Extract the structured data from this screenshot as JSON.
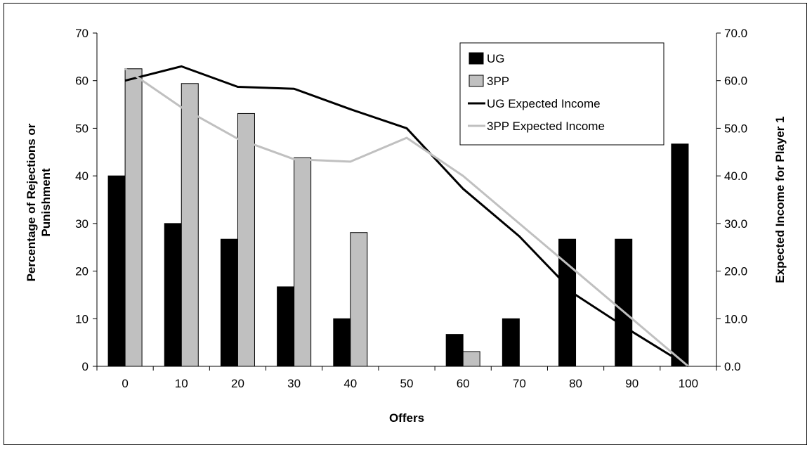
{
  "chart_data": {
    "type": "bar",
    "categories": [
      "0",
      "10",
      "20",
      "30",
      "40",
      "50",
      "60",
      "70",
      "80",
      "90",
      "100"
    ],
    "xlabel": "Offers",
    "ylabel": "Percentage of Rejections or Punishment",
    "ylabel_lines": [
      "Percentage of Rejections or",
      "Punishment"
    ],
    "y2label": "Expected Income for Player 1",
    "ylim": [
      0,
      70
    ],
    "y2lim": [
      0,
      70
    ],
    "yticks": [
      "0",
      "10",
      "20",
      "30",
      "40",
      "50",
      "60",
      "70"
    ],
    "y2ticks": [
      "0.0",
      "10.0",
      "20.0",
      "30.0",
      "40.0",
      "50.0",
      "60.0",
      "70.0"
    ],
    "legend_position": "top-right",
    "series": [
      {
        "name": "UG",
        "kind": "bar",
        "axis": "left",
        "color": "#000000",
        "values": [
          40,
          30,
          26.7,
          16.7,
          10,
          0,
          6.7,
          10,
          26.7,
          26.7,
          46.7
        ]
      },
      {
        "name": "3PP",
        "kind": "bar",
        "axis": "left",
        "color": "#c0c0c0",
        "values": [
          62.5,
          59.4,
          53.1,
          43.8,
          28.1,
          0,
          3.1,
          0,
          0,
          0,
          0
        ]
      },
      {
        "name": "UG Expected Income",
        "kind": "line",
        "axis": "right",
        "color": "#000000",
        "values": [
          60,
          63,
          58.7,
          58.3,
          54,
          50,
          37.3,
          27.3,
          15,
          7.3,
          0
        ]
      },
      {
        "name": "3PP Expected Income",
        "kind": "line",
        "axis": "right",
        "color": "#c0c0c0",
        "values": [
          62.5,
          54.4,
          47.8,
          43.5,
          43,
          48,
          40,
          30,
          20,
          10,
          0
        ]
      }
    ]
  }
}
